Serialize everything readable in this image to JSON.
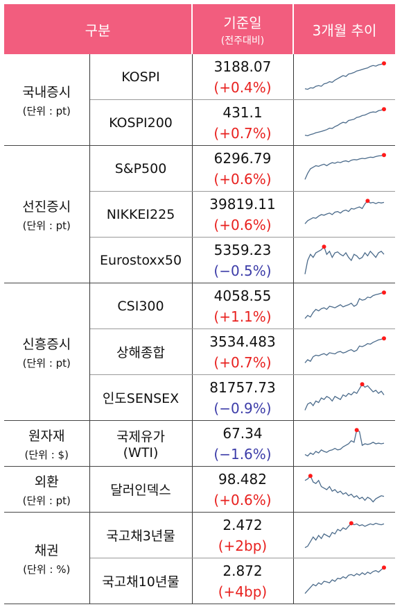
{
  "header": {
    "col_category": "구분",
    "col_value_line1": "기준일",
    "col_value_line2": "(전주대비)",
    "col_trend": "3개월 추이"
  },
  "colors": {
    "header_bg": "#f25d7e",
    "up": "#e8201e",
    "down": "#3c3ca8",
    "line": "#4a6a8a",
    "marker": "#ff1a1a"
  },
  "groups": [
    {
      "name": "국내증시",
      "unit": "(단위 : pt)",
      "rows": [
        {
          "item": "KOSPI",
          "value": "3188.07",
          "change": "(+0.4%)",
          "dir": "up",
          "trend": [
            0.12,
            0.1,
            0.15,
            0.14,
            0.2,
            0.22,
            0.2,
            0.28,
            0.3,
            0.35,
            0.33,
            0.4,
            0.45,
            0.5,
            0.55,
            0.52,
            0.6,
            0.62,
            0.65,
            0.7,
            0.72,
            0.75,
            0.78,
            0.8,
            0.85,
            0.88,
            0.86,
            0.9,
            0.92,
            0.95
          ]
        },
        {
          "item": "KOSPI200",
          "value": "431.1",
          "change": "(+0.7%)",
          "dir": "up",
          "trend": [
            0.1,
            0.08,
            0.12,
            0.14,
            0.18,
            0.2,
            0.22,
            0.25,
            0.28,
            0.33,
            0.32,
            0.38,
            0.42,
            0.48,
            0.52,
            0.5,
            0.58,
            0.6,
            0.62,
            0.68,
            0.7,
            0.74,
            0.76,
            0.8,
            0.84,
            0.86,
            0.85,
            0.9,
            0.92,
            0.95
          ]
        }
      ]
    },
    {
      "name": "선진증시",
      "unit": "(단위 : pt)",
      "rows": [
        {
          "item": "S&P500",
          "value": "6296.79",
          "change": "(+0.6%)",
          "dir": "up",
          "trend": [
            0.15,
            0.35,
            0.5,
            0.55,
            0.6,
            0.58,
            0.62,
            0.65,
            0.6,
            0.66,
            0.7,
            0.68,
            0.72,
            0.7,
            0.74,
            0.76,
            0.73,
            0.78,
            0.8,
            0.79,
            0.82,
            0.84,
            0.83,
            0.86,
            0.88,
            0.87,
            0.9,
            0.92,
            0.93,
            0.95
          ]
        },
        {
          "item": "NIKKEI225",
          "value": "39819.11",
          "change": "(+0.6%)",
          "dir": "up",
          "trend": [
            0.2,
            0.3,
            0.35,
            0.4,
            0.38,
            0.45,
            0.5,
            0.48,
            0.52,
            0.55,
            0.5,
            0.58,
            0.6,
            0.55,
            0.62,
            0.65,
            0.6,
            0.7,
            0.68,
            0.72,
            0.75,
            0.7,
            0.85,
            0.95,
            0.88,
            0.9,
            0.86,
            0.9,
            0.88,
            0.9
          ]
        },
        {
          "item": "Eurostoxx50",
          "value": "5359.23",
          "change": "(−0.5%)",
          "dir": "down",
          "trend": [
            0.05,
            0.5,
            0.7,
            0.6,
            0.75,
            0.8,
            0.85,
            0.95,
            0.7,
            0.8,
            0.6,
            0.75,
            0.78,
            0.7,
            0.65,
            0.75,
            0.6,
            0.5,
            0.7,
            0.65,
            0.55,
            0.6,
            0.75,
            0.65,
            0.8,
            0.7,
            0.6,
            0.75,
            0.8,
            0.7
          ]
        }
      ]
    },
    {
      "name": "신흥증시",
      "unit": "(단위 : pt)",
      "rows": [
        {
          "item": "CSI300",
          "value": "4058.55",
          "change": "(+1.1%)",
          "dir": "up",
          "trend": [
            0.1,
            0.2,
            0.15,
            0.3,
            0.4,
            0.35,
            0.42,
            0.45,
            0.4,
            0.5,
            0.48,
            0.45,
            0.5,
            0.55,
            0.48,
            0.52,
            0.55,
            0.6,
            0.5,
            0.55,
            0.75,
            0.7,
            0.72,
            0.8,
            0.78,
            0.85,
            0.88,
            0.9,
            0.93,
            0.95
          ]
        },
        {
          "item": "상해종합",
          "value": "3534.483",
          "change": "(+0.7%)",
          "dir": "up",
          "trend": [
            0.15,
            0.25,
            0.2,
            0.35,
            0.4,
            0.38,
            0.42,
            0.45,
            0.4,
            0.48,
            0.46,
            0.44,
            0.5,
            0.52,
            0.47,
            0.5,
            0.55,
            0.58,
            0.52,
            0.56,
            0.7,
            0.68,
            0.72,
            0.78,
            0.76,
            0.82,
            0.86,
            0.9,
            0.92,
            0.95
          ]
        },
        {
          "item": "인도SENSEX",
          "value": "81757.73",
          "change": "(−0.9%)",
          "dir": "down",
          "trend": [
            0.1,
            0.3,
            0.35,
            0.25,
            0.4,
            0.35,
            0.5,
            0.45,
            0.55,
            0.5,
            0.4,
            0.55,
            0.5,
            0.45,
            0.6,
            0.55,
            0.65,
            0.6,
            0.7,
            0.65,
            0.8,
            0.95,
            0.85,
            0.9,
            0.8,
            0.7,
            0.75,
            0.65,
            0.72,
            0.6
          ]
        }
      ]
    },
    {
      "name": "원자재",
      "unit": "(단위 : $)",
      "rows": [
        {
          "item": "국제유가\n(WTI)",
          "value": "67.34",
          "change": "(−1.6%)",
          "dir": "down",
          "trend": [
            0.15,
            0.1,
            0.2,
            0.15,
            0.25,
            0.2,
            0.3,
            0.25,
            0.22,
            0.28,
            0.3,
            0.35,
            0.3,
            0.32,
            0.4,
            0.45,
            0.5,
            0.6,
            0.55,
            0.95,
            0.9,
            0.45,
            0.5,
            0.48,
            0.5,
            0.55,
            0.5,
            0.52,
            0.5,
            0.52
          ]
        }
      ]
    },
    {
      "name": "외환",
      "unit": "(단위 : pt)",
      "rows": [
        {
          "item": "달러인덱스",
          "value": "98.482",
          "change": "(+0.6%)",
          "dir": "up",
          "trend": [
            0.8,
            0.85,
            0.95,
            0.75,
            0.7,
            0.8,
            0.6,
            0.55,
            0.5,
            0.6,
            0.45,
            0.5,
            0.4,
            0.45,
            0.35,
            0.4,
            0.3,
            0.35,
            0.25,
            0.3,
            0.2,
            0.25,
            0.15,
            0.25,
            0.2,
            0.1,
            0.2,
            0.25,
            0.3,
            0.28
          ]
        }
      ]
    },
    {
      "name": "채권",
      "unit": "(단위 : %)",
      "rows": [
        {
          "item": "국고채3년물",
          "value": "2.472",
          "change": "(+2bp)",
          "dir": "up",
          "trend": [
            0.1,
            0.15,
            0.3,
            0.45,
            0.35,
            0.5,
            0.4,
            0.55,
            0.5,
            0.45,
            0.6,
            0.55,
            0.7,
            0.65,
            0.75,
            0.7,
            0.8,
            0.9,
            0.85,
            0.88,
            0.82,
            0.85,
            0.8,
            0.84,
            0.88,
            0.85,
            0.9,
            0.87,
            0.85,
            0.88
          ]
        },
        {
          "item": "국고채10년물",
          "value": "2.872",
          "change": "(+4bp)",
          "dir": "up",
          "trend": [
            0.1,
            0.2,
            0.3,
            0.4,
            0.35,
            0.45,
            0.4,
            0.5,
            0.48,
            0.45,
            0.55,
            0.5,
            0.6,
            0.58,
            0.65,
            0.6,
            0.7,
            0.72,
            0.68,
            0.75,
            0.7,
            0.78,
            0.72,
            0.8,
            0.75,
            0.82,
            0.85,
            0.8,
            0.88,
            0.95
          ]
        }
      ]
    }
  ]
}
